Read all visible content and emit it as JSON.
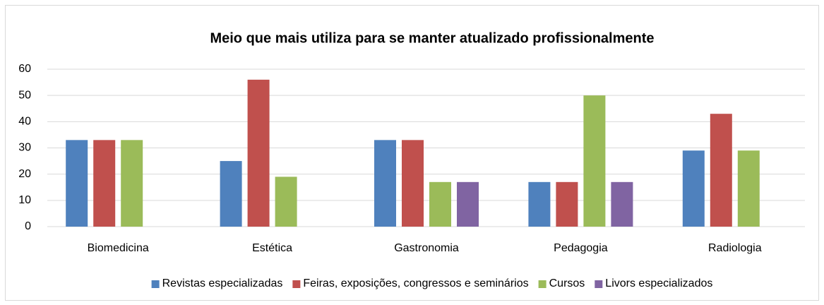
{
  "chart_data": {
    "type": "bar",
    "title": "Meio que mais utiliza para se manter atualizado profissionalmente",
    "categories": [
      "Biomedicina",
      "Estética",
      "Gastronomia",
      "Pedagogia",
      "Radiologia"
    ],
    "series": [
      {
        "name": "Revistas especializadas",
        "color": "#4f81bd",
        "values": [
          33,
          25,
          33,
          17,
          29
        ]
      },
      {
        "name": "Feiras, exposições, congressos e seminários",
        "color": "#c0504d",
        "values": [
          33,
          56,
          33,
          17,
          43
        ]
      },
      {
        "name": "Cursos",
        "color": "#9bbb59",
        "values": [
          33,
          19,
          17,
          50,
          29
        ]
      },
      {
        "name": "Livors especializados",
        "color": "#8064a2",
        "values": [
          null,
          null,
          17,
          17,
          null
        ]
      }
    ],
    "ylim": [
      0,
      60
    ],
    "yticks": [
      0,
      10,
      20,
      30,
      40,
      50,
      60
    ],
    "grid": true,
    "legend": "bottom"
  }
}
